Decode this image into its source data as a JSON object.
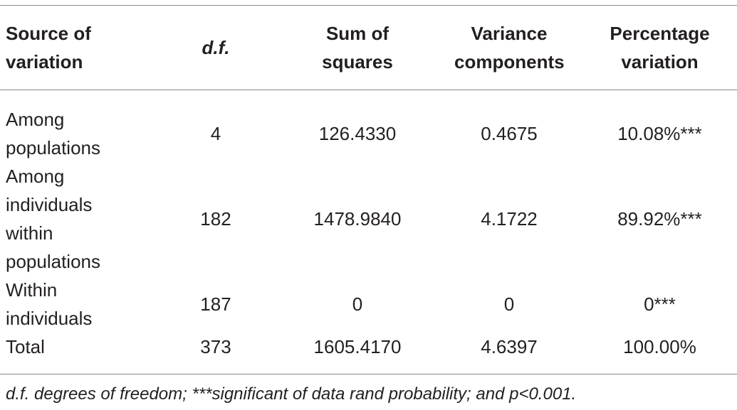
{
  "table": {
    "header": [
      [
        "Source of",
        "variation"
      ],
      [
        "d.f."
      ],
      [
        "Sum of",
        "squares"
      ],
      [
        "Variance",
        "components"
      ],
      [
        "Percentage",
        "variation"
      ]
    ],
    "rows": [
      [
        [
          "Among",
          "populations"
        ],
        "4",
        "126.4330",
        "0.4675",
        "10.08%***"
      ],
      [
        [
          "Among",
          "individuals",
          "within",
          "populations"
        ],
        "182",
        "1478.9840",
        "4.1722",
        "89.92%***"
      ],
      [
        [
          "Within",
          "individuals"
        ],
        "187",
        "0",
        "0",
        "0***"
      ],
      [
        [
          "Total"
        ],
        "373",
        "1605.4170",
        "4.6397",
        "100.00%"
      ]
    ]
  },
  "footnote": "d.f. degrees of freedom; ***significant of data rand probability; and p<0.001."
}
